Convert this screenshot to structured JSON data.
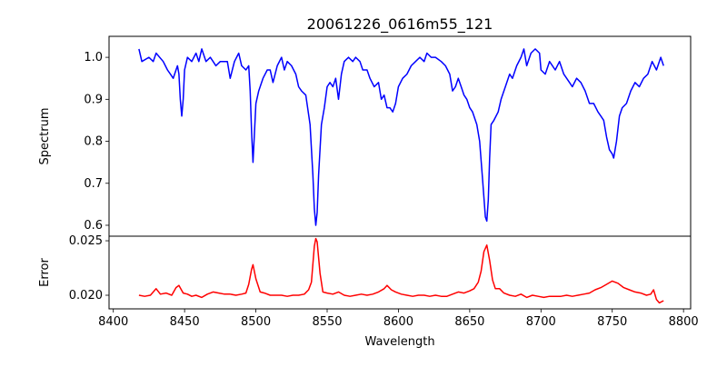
{
  "chart_data": {
    "type": "line",
    "title": "20061226_0616m55_121",
    "xlabel": "Wavelength",
    "xlim": [
      8397,
      8805
    ],
    "xticks": [
      8400,
      8450,
      8500,
      8550,
      8600,
      8650,
      8700,
      8750,
      8800
    ],
    "panels": [
      {
        "name": "spectrum",
        "ylabel": "Spectrum",
        "ylim": [
          0.574,
          1.05
        ],
        "yticks": [
          0.6,
          0.7,
          0.8,
          0.9,
          1.0
        ],
        "ytick_labels": [
          "0.6",
          "0.7",
          "0.8",
          "0.9",
          "1.0"
        ],
        "color": "#0000ff",
        "x": [
          8418,
          8420,
          8425,
          8428,
          8430,
          8435,
          8438,
          8440,
          8442,
          8444,
          8445,
          8446,
          8447,
          8448,
          8449,
          8450,
          8452,
          8455,
          8458,
          8460,
          8462,
          8465,
          8468,
          8470,
          8472,
          8475,
          8478,
          8480,
          8482,
          8485,
          8488,
          8490,
          8493,
          8495,
          8496,
          8497,
          8498,
          8499,
          8500,
          8502,
          8505,
          8508,
          8510,
          8512,
          8515,
          8518,
          8520,
          8522,
          8525,
          8528,
          8530,
          8532,
          8535,
          8538,
          8540,
          8541,
          8542,
          8543,
          8544,
          8546,
          8548,
          8550,
          8552,
          8554,
          8556,
          8558,
          8560,
          8562,
          8565,
          8568,
          8570,
          8573,
          8575,
          8578,
          8580,
          8583,
          8586,
          8588,
          8590,
          8592,
          8594,
          8596,
          8598,
          8600,
          8603,
          8606,
          8609,
          8612,
          8615,
          8618,
          8620,
          8623,
          8626,
          8630,
          8633,
          8636,
          8638,
          8640,
          8642,
          8644,
          8646,
          8648,
          8650,
          8652,
          8655,
          8657,
          8659,
          8661,
          8662,
          8663,
          8664,
          8665,
          8667,
          8670,
          8672,
          8675,
          8678,
          8680,
          8683,
          8686,
          8688,
          8690,
          8693,
          8696,
          8699,
          8700,
          8703,
          8706,
          8710,
          8713,
          8716,
          8720,
          8722,
          8725,
          8728,
          8731,
          8734,
          8737,
          8740,
          8742,
          8744,
          8746,
          8748,
          8750,
          8751,
          8753,
          8755,
          8757,
          8760,
          8763,
          8766,
          8769,
          8772,
          8775,
          8778,
          8781,
          8784,
          8786
        ],
        "y": [
          1.02,
          0.99,
          1.0,
          0.99,
          1.01,
          0.99,
          0.97,
          0.96,
          0.95,
          0.97,
          0.98,
          0.96,
          0.9,
          0.86,
          0.9,
          0.97,
          1.0,
          0.99,
          1.01,
          0.99,
          1.02,
          0.99,
          1.0,
          0.99,
          0.98,
          0.99,
          0.99,
          0.99,
          0.95,
          0.99,
          1.01,
          0.98,
          0.97,
          0.98,
          0.92,
          0.82,
          0.75,
          0.82,
          0.89,
          0.92,
          0.95,
          0.97,
          0.97,
          0.94,
          0.98,
          1.0,
          0.97,
          0.99,
          0.98,
          0.96,
          0.93,
          0.92,
          0.91,
          0.84,
          0.72,
          0.64,
          0.6,
          0.63,
          0.72,
          0.84,
          0.88,
          0.93,
          0.94,
          0.93,
          0.95,
          0.9,
          0.96,
          0.99,
          1.0,
          0.99,
          1.0,
          0.99,
          0.97,
          0.97,
          0.95,
          0.93,
          0.94,
          0.9,
          0.91,
          0.88,
          0.88,
          0.87,
          0.89,
          0.93,
          0.95,
          0.96,
          0.98,
          0.99,
          1.0,
          0.99,
          1.01,
          1.0,
          1.0,
          0.99,
          0.98,
          0.96,
          0.92,
          0.93,
          0.95,
          0.93,
          0.91,
          0.9,
          0.88,
          0.87,
          0.84,
          0.8,
          0.71,
          0.62,
          0.61,
          0.66,
          0.76,
          0.84,
          0.85,
          0.87,
          0.9,
          0.93,
          0.96,
          0.95,
          0.98,
          1.0,
          1.02,
          0.98,
          1.01,
          1.02,
          1.01,
          0.97,
          0.96,
          0.99,
          0.97,
          0.99,
          0.96,
          0.94,
          0.93,
          0.95,
          0.94,
          0.92,
          0.89,
          0.89,
          0.87,
          0.86,
          0.85,
          0.81,
          0.78,
          0.77,
          0.76,
          0.8,
          0.86,
          0.88,
          0.89,
          0.92,
          0.94,
          0.93,
          0.95,
          0.96,
          0.99,
          0.97,
          1.0,
          0.98
        ]
      },
      {
        "name": "error",
        "ylabel": "Error",
        "ylim": [
          0.01875,
          0.02542
        ],
        "yticks": [
          0.02,
          0.025
        ],
        "ytick_labels": [
          "0.020",
          "0.025"
        ],
        "color": "#ff0000",
        "x": [
          8418,
          8422,
          8426,
          8430,
          8433,
          8437,
          8441,
          8444,
          8446,
          8449,
          8452,
          8455,
          8458,
          8462,
          8466,
          8470,
          8474,
          8478,
          8482,
          8486,
          8490,
          8493,
          8495,
          8497,
          8498,
          8500,
          8503,
          8506,
          8510,
          8514,
          8518,
          8522,
          8526,
          8530,
          8534,
          8537,
          8539,
          8541,
          8542,
          8543,
          8545,
          8547,
          8550,
          8554,
          8558,
          8562,
          8566,
          8570,
          8574,
          8578,
          8582,
          8586,
          8590,
          8592,
          8595,
          8598,
          8602,
          8606,
          8610,
          8614,
          8618,
          8622,
          8626,
          8630,
          8634,
          8638,
          8642,
          8646,
          8650,
          8653,
          8656,
          8658,
          8660,
          8662,
          8664,
          8666,
          8668,
          8671,
          8674,
          8678,
          8682,
          8686,
          8690,
          8694,
          8698,
          8702,
          8706,
          8710,
          8714,
          8718,
          8722,
          8726,
          8730,
          8734,
          8738,
          8742,
          8746,
          8750,
          8754,
          8758,
          8762,
          8766,
          8770,
          8774,
          8777,
          8779,
          8781,
          8783,
          8786
        ],
        "y": [
          0.02,
          0.0199,
          0.02,
          0.0206,
          0.0201,
          0.0202,
          0.02,
          0.0207,
          0.0209,
          0.0202,
          0.0201,
          0.0199,
          0.02,
          0.0198,
          0.0201,
          0.0203,
          0.0202,
          0.0201,
          0.0201,
          0.02,
          0.0201,
          0.0202,
          0.021,
          0.0224,
          0.0228,
          0.0215,
          0.0203,
          0.0202,
          0.02,
          0.02,
          0.02,
          0.0199,
          0.02,
          0.02,
          0.0201,
          0.0205,
          0.0212,
          0.0245,
          0.0252,
          0.0249,
          0.022,
          0.0203,
          0.0202,
          0.0201,
          0.0203,
          0.02,
          0.0199,
          0.02,
          0.0201,
          0.02,
          0.0201,
          0.0203,
          0.0206,
          0.0209,
          0.0205,
          0.0203,
          0.0201,
          0.02,
          0.0199,
          0.02,
          0.02,
          0.0199,
          0.02,
          0.0199,
          0.0199,
          0.0201,
          0.0203,
          0.0202,
          0.0204,
          0.0206,
          0.0212,
          0.0222,
          0.024,
          0.0246,
          0.0232,
          0.0214,
          0.0206,
          0.0206,
          0.0202,
          0.02,
          0.0199,
          0.0201,
          0.0198,
          0.02,
          0.0199,
          0.0198,
          0.0199,
          0.0199,
          0.0199,
          0.02,
          0.0199,
          0.02,
          0.0201,
          0.0202,
          0.0205,
          0.0207,
          0.021,
          0.0213,
          0.0211,
          0.0207,
          0.0205,
          0.0203,
          0.0202,
          0.02,
          0.0201,
          0.0205,
          0.0196,
          0.0193,
          0.0195
        ]
      }
    ]
  }
}
